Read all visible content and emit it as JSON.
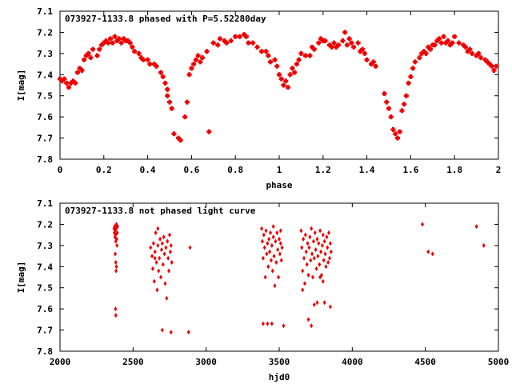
{
  "chart_data": [
    {
      "type": "scatter",
      "title": "073927-1133.8 phased with P=5.52280day",
      "xlabel": "phase",
      "ylabel": "I[mag]",
      "xlim": [
        0,
        2
      ],
      "ylim": [
        7.8,
        7.1
      ],
      "y_inverted": true,
      "xticks": [
        "0",
        "0.2",
        "0.4",
        "0.6",
        "0.8",
        "1",
        "1.2",
        "1.4",
        "1.6",
        "1.8",
        "2"
      ],
      "yticks": [
        "7.1",
        "7.2",
        "7.3",
        "7.4",
        "7.5",
        "7.6",
        "7.7",
        "7.8"
      ],
      "marker_color": "#ee0000",
      "marker": "cross",
      "points": [
        [
          0.0,
          7.42
        ],
        [
          0.01,
          7.43
        ],
        [
          0.02,
          7.42
        ],
        [
          0.03,
          7.44
        ],
        [
          0.04,
          7.46
        ],
        [
          0.05,
          7.44
        ],
        [
          0.06,
          7.43
        ],
        [
          0.07,
          7.44
        ],
        [
          0.08,
          7.39
        ],
        [
          0.09,
          7.37
        ],
        [
          0.1,
          7.38
        ],
        [
          0.11,
          7.33
        ],
        [
          0.12,
          7.31
        ],
        [
          0.13,
          7.3
        ],
        [
          0.14,
          7.32
        ],
        [
          0.15,
          7.28
        ],
        [
          0.17,
          7.31
        ],
        [
          0.18,
          7.28
        ],
        [
          0.19,
          7.26
        ],
        [
          0.2,
          7.25
        ],
        [
          0.21,
          7.24
        ],
        [
          0.22,
          7.25
        ],
        [
          0.23,
          7.23
        ],
        [
          0.24,
          7.25
        ],
        [
          0.25,
          7.22
        ],
        [
          0.26,
          7.24
        ],
        [
          0.27,
          7.23
        ],
        [
          0.28,
          7.25
        ],
        [
          0.29,
          7.23
        ],
        [
          0.3,
          7.24
        ],
        [
          0.31,
          7.24
        ],
        [
          0.32,
          7.25
        ],
        [
          0.33,
          7.27
        ],
        [
          0.34,
          7.29
        ],
        [
          0.36,
          7.3
        ],
        [
          0.37,
          7.32
        ],
        [
          0.38,
          7.33
        ],
        [
          0.4,
          7.33
        ],
        [
          0.41,
          7.35
        ],
        [
          0.43,
          7.35
        ],
        [
          0.44,
          7.36
        ],
        [
          0.46,
          7.39
        ],
        [
          0.47,
          7.41
        ],
        [
          0.48,
          7.44
        ],
        [
          0.49,
          7.47
        ],
        [
          0.49,
          7.5
        ],
        [
          0.5,
          7.53
        ],
        [
          0.51,
          7.56
        ],
        [
          0.52,
          7.68
        ],
        [
          0.54,
          7.7
        ],
        [
          0.55,
          7.71
        ],
        [
          0.57,
          7.6
        ],
        [
          0.58,
          7.53
        ],
        [
          0.59,
          7.4
        ],
        [
          0.6,
          7.37
        ],
        [
          0.61,
          7.35
        ],
        [
          0.62,
          7.33
        ],
        [
          0.63,
          7.31
        ],
        [
          0.64,
          7.34
        ],
        [
          0.65,
          7.32
        ],
        [
          0.67,
          7.29
        ],
        [
          0.68,
          7.67
        ],
        [
          0.7,
          7.25
        ],
        [
          0.72,
          7.26
        ],
        [
          0.73,
          7.23
        ],
        [
          0.75,
          7.24
        ],
        [
          0.76,
          7.25
        ],
        [
          0.78,
          7.24
        ],
        [
          0.8,
          7.22
        ],
        [
          0.82,
          7.22
        ],
        [
          0.84,
          7.21
        ],
        [
          0.85,
          7.22
        ],
        [
          0.86,
          7.25
        ],
        [
          0.88,
          7.25
        ],
        [
          0.9,
          7.27
        ],
        [
          0.92,
          7.29
        ],
        [
          0.94,
          7.29
        ],
        [
          0.95,
          7.31
        ],
        [
          0.96,
          7.34
        ],
        [
          0.98,
          7.33
        ],
        [
          0.99,
          7.36
        ],
        [
          1.0,
          7.4
        ],
        [
          1.01,
          7.42
        ],
        [
          1.02,
          7.45
        ],
        [
          1.03,
          7.43
        ],
        [
          1.04,
          7.46
        ],
        [
          1.05,
          7.4
        ],
        [
          1.06,
          7.37
        ],
        [
          1.07,
          7.39
        ],
        [
          1.08,
          7.35
        ],
        [
          1.09,
          7.33
        ],
        [
          1.1,
          7.3
        ],
        [
          1.12,
          7.31
        ],
        [
          1.14,
          7.31
        ],
        [
          1.15,
          7.27
        ],
        [
          1.16,
          7.28
        ],
        [
          1.18,
          7.25
        ],
        [
          1.19,
          7.23
        ],
        [
          1.2,
          7.24
        ],
        [
          1.21,
          7.24
        ],
        [
          1.23,
          7.26
        ],
        [
          1.24,
          7.27
        ],
        [
          1.25,
          7.25
        ],
        [
          1.26,
          7.27
        ],
        [
          1.27,
          7.26
        ],
        [
          1.29,
          7.24
        ],
        [
          1.3,
          7.2
        ],
        [
          1.31,
          7.26
        ],
        [
          1.32,
          7.23
        ],
        [
          1.33,
          7.25
        ],
        [
          1.34,
          7.27
        ],
        [
          1.36,
          7.25
        ],
        [
          1.37,
          7.29
        ],
        [
          1.38,
          7.28
        ],
        [
          1.39,
          7.3
        ],
        [
          1.4,
          7.33
        ],
        [
          1.42,
          7.35
        ],
        [
          1.43,
          7.34
        ],
        [
          1.44,
          7.36
        ],
        [
          1.48,
          7.49
        ],
        [
          1.49,
          7.53
        ],
        [
          1.5,
          7.56
        ],
        [
          1.51,
          7.6
        ],
        [
          1.52,
          7.66
        ],
        [
          1.53,
          7.68
        ],
        [
          1.54,
          7.7
        ],
        [
          1.55,
          7.67
        ],
        [
          1.56,
          7.57
        ],
        [
          1.57,
          7.54
        ],
        [
          1.58,
          7.5
        ],
        [
          1.59,
          7.44
        ],
        [
          1.6,
          7.41
        ],
        [
          1.61,
          7.37
        ],
        [
          1.62,
          7.34
        ],
        [
          1.64,
          7.32
        ],
        [
          1.65,
          7.3
        ],
        [
          1.66,
          7.29
        ],
        [
          1.67,
          7.3
        ],
        [
          1.68,
          7.27
        ],
        [
          1.69,
          7.28
        ],
        [
          1.7,
          7.26
        ],
        [
          1.71,
          7.26
        ],
        [
          1.72,
          7.24
        ],
        [
          1.73,
          7.23
        ],
        [
          1.74,
          7.25
        ],
        [
          1.75,
          7.22
        ],
        [
          1.76,
          7.25
        ],
        [
          1.77,
          7.24
        ],
        [
          1.78,
          7.26
        ],
        [
          1.79,
          7.25
        ],
        [
          1.8,
          7.22
        ],
        [
          1.82,
          7.25
        ],
        [
          1.84,
          7.26
        ],
        [
          1.85,
          7.27
        ],
        [
          1.86,
          7.29
        ],
        [
          1.87,
          7.28
        ],
        [
          1.88,
          7.3
        ],
        [
          1.9,
          7.31
        ],
        [
          1.91,
          7.3
        ],
        [
          1.92,
          7.32
        ],
        [
          1.94,
          7.33
        ],
        [
          1.95,
          7.34
        ],
        [
          1.96,
          7.35
        ],
        [
          1.97,
          7.36
        ],
        [
          1.98,
          7.38
        ],
        [
          1.99,
          7.36
        ]
      ]
    },
    {
      "type": "scatter",
      "title": "073927-1133.8 not phased light curve",
      "xlabel": "hjd0",
      "ylabel": "I[mag]",
      "xlim": [
        2000,
        5000
      ],
      "ylim": [
        7.8,
        7.1
      ],
      "y_inverted": true,
      "xticks": [
        "2000",
        "2500",
        "3000",
        "3500",
        "4000",
        "4500",
        "5000"
      ],
      "yticks": [
        "7.1",
        "7.2",
        "7.3",
        "7.4",
        "7.5",
        "7.6",
        "7.7",
        "7.8"
      ],
      "marker_color": "#ee0000",
      "marker": "diamond",
      "points": [
        [
          2370,
          7.22
        ],
        [
          2372,
          7.24
        ],
        [
          2374,
          7.21
        ],
        [
          2376,
          7.26
        ],
        [
          2378,
          7.23
        ],
        [
          2380,
          7.25
        ],
        [
          2382,
          7.28
        ],
        [
          2384,
          7.22
        ],
        [
          2386,
          7.2
        ],
        [
          2388,
          7.27
        ],
        [
          2390,
          7.3
        ],
        [
          2392,
          7.24
        ],
        [
          2394,
          7.21
        ],
        [
          2378,
          7.34
        ],
        [
          2382,
          7.38
        ],
        [
          2384,
          7.42
        ],
        [
          2386,
          7.4
        ],
        [
          2380,
          7.6
        ],
        [
          2382,
          7.63
        ],
        [
          2620,
          7.31
        ],
        [
          2630,
          7.35
        ],
        [
          2635,
          7.41
        ],
        [
          2640,
          7.29
        ],
        [
          2645,
          7.47
        ],
        [
          2650,
          7.33
        ],
        [
          2655,
          7.24
        ],
        [
          2660,
          7.38
        ],
        [
          2665,
          7.51
        ],
        [
          2670,
          7.3
        ],
        [
          2675,
          7.42
        ],
        [
          2680,
          7.36
        ],
        [
          2685,
          7.27
        ],
        [
          2690,
          7.45
        ],
        [
          2695,
          7.32
        ],
        [
          2700,
          7.29
        ],
        [
          2705,
          7.39
        ],
        [
          2710,
          7.26
        ],
        [
          2715,
          7.34
        ],
        [
          2720,
          7.48
        ],
        [
          2725,
          7.31
        ],
        [
          2730,
          7.55
        ],
        [
          2735,
          7.28
        ],
        [
          2740,
          7.36
        ],
        [
          2745,
          7.42
        ],
        [
          2750,
          7.25
        ],
        [
          2755,
          7.33
        ],
        [
          2760,
          7.3
        ],
        [
          2765,
          7.38
        ],
        [
          2650,
          7.36
        ],
        [
          2670,
          7.22
        ],
        [
          2700,
          7.7
        ],
        [
          2760,
          7.71
        ],
        [
          2880,
          7.71
        ],
        [
          2890,
          7.31
        ],
        [
          3380,
          7.22
        ],
        [
          3385,
          7.28
        ],
        [
          3390,
          7.36
        ],
        [
          3395,
          7.25
        ],
        [
          3400,
          7.31
        ],
        [
          3405,
          7.45
        ],
        [
          3410,
          7.23
        ],
        [
          3415,
          7.34
        ],
        [
          3420,
          7.29
        ],
        [
          3425,
          7.4
        ],
        [
          3430,
          7.27
        ],
        [
          3435,
          7.33
        ],
        [
          3440,
          7.24
        ],
        [
          3445,
          7.37
        ],
        [
          3450,
          7.3
        ],
        [
          3455,
          7.42
        ],
        [
          3460,
          7.26
        ],
        [
          3465,
          7.35
        ],
        [
          3470,
          7.49
        ],
        [
          3475,
          7.28
        ],
        [
          3480,
          7.38
        ],
        [
          3485,
          7.24
        ],
        [
          3490,
          7.32
        ],
        [
          3495,
          7.45
        ],
        [
          3500,
          7.27
        ],
        [
          3505,
          7.34
        ],
        [
          3510,
          7.29
        ],
        [
          3515,
          7.37
        ],
        [
          3520,
          7.31
        ],
        [
          3390,
          7.67
        ],
        [
          3420,
          7.67
        ],
        [
          3450,
          7.67
        ],
        [
          3530,
          7.68
        ],
        [
          3460,
          7.21
        ],
        [
          3510,
          7.23
        ],
        [
          3650,
          7.23
        ],
        [
          3655,
          7.31
        ],
        [
          3660,
          7.42
        ],
        [
          3665,
          7.27
        ],
        [
          3670,
          7.36
        ],
        [
          3675,
          7.48
        ],
        [
          3680,
          7.25
        ],
        [
          3685,
          7.33
        ],
        [
          3690,
          7.39
        ],
        [
          3695,
          7.29
        ],
        [
          3700,
          7.44
        ],
        [
          3705,
          7.31
        ],
        [
          3710,
          7.26
        ],
        [
          3715,
          7.37
        ],
        [
          3720,
          7.22
        ],
        [
          3725,
          7.34
        ],
        [
          3730,
          7.45
        ],
        [
          3735,
          7.28
        ],
        [
          3740,
          7.36
        ],
        [
          3745,
          7.24
        ],
        [
          3750,
          7.32
        ],
        [
          3755,
          7.41
        ],
        [
          3760,
          7.27
        ],
        [
          3765,
          7.35
        ],
        [
          3770,
          7.29
        ],
        [
          3775,
          7.39
        ],
        [
          3780,
          7.23
        ],
        [
          3785,
          7.33
        ],
        [
          3790,
          7.44
        ],
        [
          3795,
          7.3
        ],
        [
          3800,
          7.25
        ],
        [
          3805,
          7.37
        ],
        [
          3810,
          7.28
        ],
        [
          3815,
          7.34
        ],
        [
          3820,
          7.4
        ],
        [
          3825,
          7.26
        ],
        [
          3830,
          7.31
        ],
        [
          3835,
          7.38
        ],
        [
          3840,
          7.24
        ],
        [
          3845,
          7.36
        ],
        [
          3850,
          7.29
        ],
        [
          3855,
          7.33
        ],
        [
          3660,
          7.51
        ],
        [
          3700,
          7.65
        ],
        [
          3720,
          7.68
        ],
        [
          3740,
          7.58
        ],
        [
          3760,
          7.57
        ],
        [
          3810,
          7.57
        ],
        [
          3850,
          7.59
        ],
        [
          3780,
          7.45
        ],
        [
          3800,
          7.47
        ],
        [
          4480,
          7.2
        ],
        [
          4520,
          7.33
        ],
        [
          4550,
          7.34
        ],
        [
          4850,
          7.21
        ],
        [
          4900,
          7.3
        ]
      ]
    }
  ]
}
